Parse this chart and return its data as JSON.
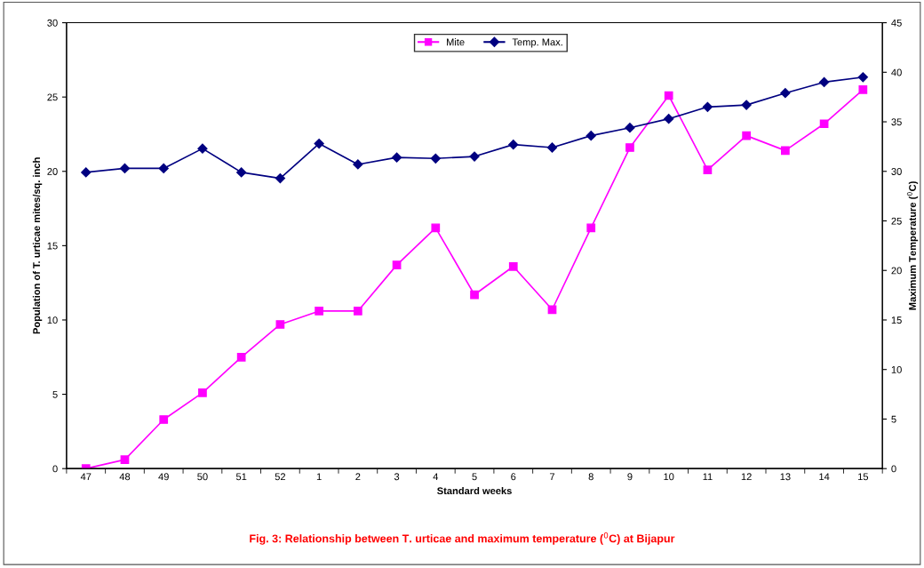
{
  "chart_data": {
    "type": "line",
    "title": "Fig. 3: Relationship between T. urticae and maximum temperature ($^{0}$C) at Bijapur",
    "xlabel": "Standard weeks",
    "ylabel": "Population of T. urticae mites/sq. inch",
    "y2label": "Maximum Temperature ($^{0}$C)",
    "categories": [
      "47",
      "48",
      "49",
      "50",
      "51",
      "52",
      "1",
      "2",
      "3",
      "4",
      "5",
      "6",
      "7",
      "8",
      "9",
      "10",
      "11",
      "12",
      "13",
      "14",
      "15"
    ],
    "series": [
      {
        "name": "Mite",
        "color": "#ff00ff",
        "marker": "square",
        "values": [
          0,
          0.6,
          3.3,
          5.1,
          7.5,
          9.7,
          10.6,
          10.6,
          13.7,
          16.2,
          11.7,
          13.6,
          10.7,
          16.2,
          21.6,
          25.1,
          20.1,
          22.4,
          21.4,
          23.2,
          25.5
        ]
      },
      {
        "name": "Temp. Max.",
        "color": "#000080",
        "marker": "diamond",
        "axis": "y2",
        "values": [
          29.9,
          30.3,
          30.3,
          32.3,
          29.9,
          29.3,
          32.8,
          30.7,
          31.4,
          31.3,
          31.5,
          32.7,
          32.4,
          33.6,
          34.4,
          35.3,
          36.5,
          36.7,
          37.9,
          39.0,
          39.5
        ]
      }
    ],
    "ylim": [
      0,
      30
    ],
    "yticks": [
      0,
      5,
      10,
      15,
      20,
      25,
      30
    ],
    "y2lim": [
      0,
      45
    ],
    "y2ticks": [
      0,
      5,
      10,
      15,
      20,
      25,
      30,
      35,
      40,
      45
    ],
    "grid": false,
    "legend": "top",
    "line_style": "solid"
  }
}
